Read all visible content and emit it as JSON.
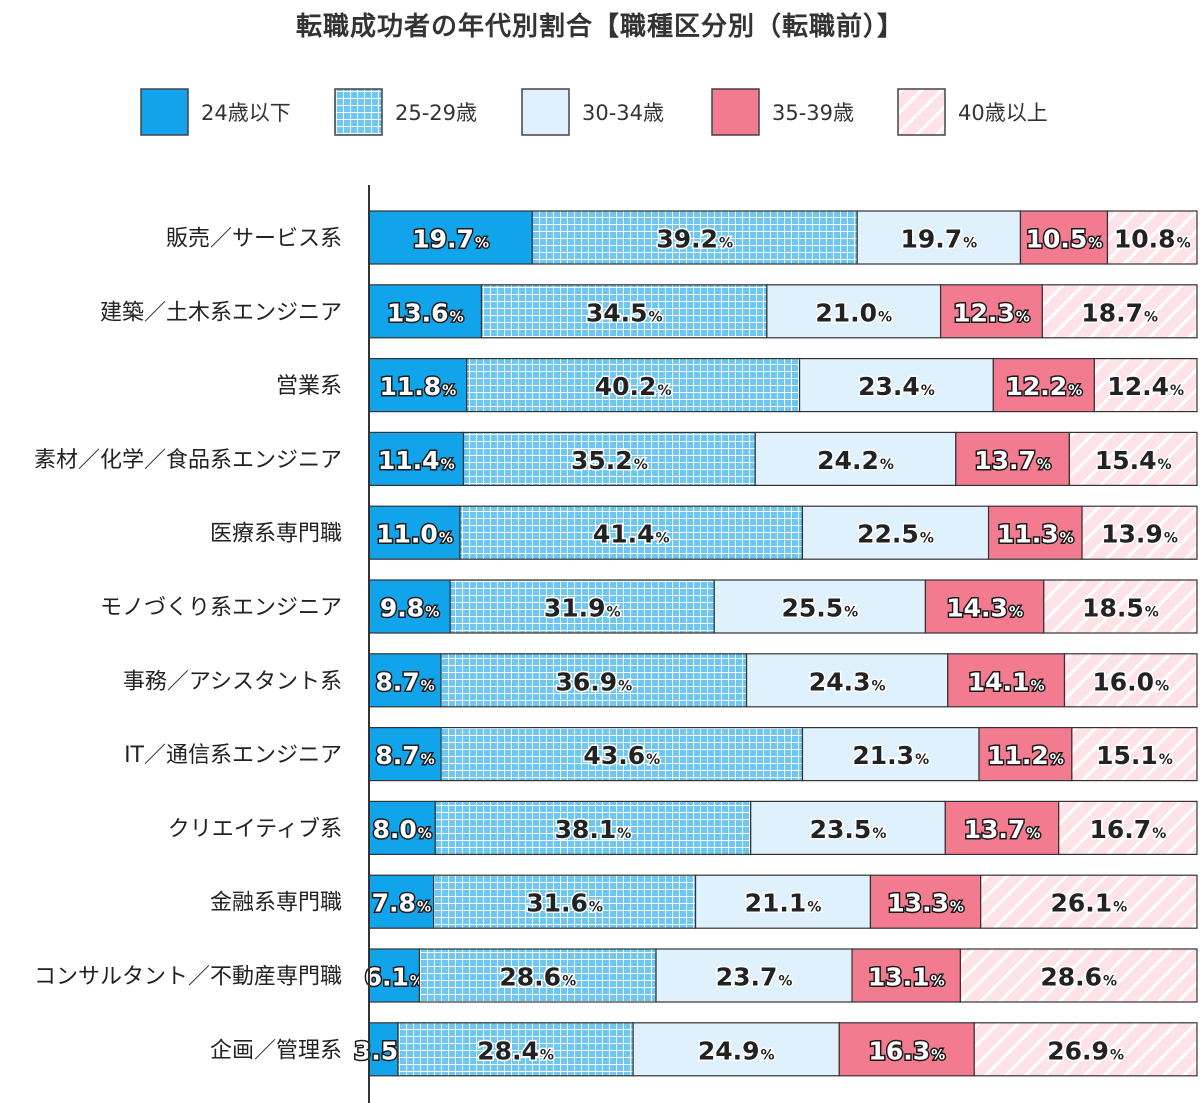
{
  "chart_data": {
    "type": "bar",
    "orientation": "horizontal",
    "stacked": "100%",
    "title": "転職成功者の年代別割合【職種区分別（転職前）】",
    "unit": "%",
    "legend_position": "top",
    "categories": [
      "販売／サービス系",
      "建築／土木系エンジニア",
      "営業系",
      "素材／化学／食品系エンジニア",
      "医療系専門職",
      "モノづくり系エンジニア",
      "事務／アシスタント系",
      "IT／通信系エンジニア",
      "クリエイティブ系",
      "金融系専門職",
      "コンサルタント／不動産専門職",
      "企画／管理系"
    ],
    "series": [
      {
        "name": "24歳以下",
        "color": "#12a4ea",
        "pattern": "solid",
        "values": [
          19.7,
          13.6,
          11.8,
          11.4,
          11.0,
          9.8,
          8.7,
          8.7,
          8.0,
          7.8,
          6.1,
          3.5
        ]
      },
      {
        "name": "25-29歳",
        "color": "#6cc8f2",
        "pattern": "grid",
        "values": [
          39.2,
          34.5,
          40.2,
          35.2,
          41.4,
          31.9,
          36.9,
          43.6,
          38.1,
          31.6,
          28.6,
          28.4
        ]
      },
      {
        "name": "30-34歳",
        "color": "#dff1fc",
        "pattern": "solid",
        "values": [
          19.7,
          21.0,
          23.4,
          24.2,
          22.5,
          25.5,
          24.3,
          21.3,
          23.5,
          21.1,
          23.7,
          24.9
        ]
      },
      {
        "name": "35-39歳",
        "color": "#f27b8f",
        "pattern": "solid",
        "values": [
          10.5,
          12.3,
          12.2,
          13.7,
          11.3,
          14.3,
          14.1,
          11.2,
          13.7,
          13.3,
          13.1,
          16.3
        ]
      },
      {
        "name": "40歳以上",
        "color": "#fde3e8",
        "pattern": "diagonal",
        "values": [
          10.8,
          18.7,
          12.4,
          15.4,
          13.9,
          18.5,
          16.0,
          15.1,
          16.7,
          26.1,
          28.6,
          26.9
        ]
      }
    ],
    "value_labels": [
      [
        "19.7",
        "39.2",
        "19.7",
        "10.5",
        "10.8"
      ],
      [
        "13.6",
        "34.5",
        "21.0",
        "12.3",
        "18.7"
      ],
      [
        "11.8",
        "40.2",
        "23.4",
        "12.2",
        "12.4"
      ],
      [
        "11.4",
        "35.2",
        "24.2",
        "13.7",
        "15.4"
      ],
      [
        "11.0",
        "41.4",
        "22.5",
        "11.3",
        "13.9"
      ],
      [
        "9.8",
        "31.9",
        "25.5",
        "14.3",
        "18.5"
      ],
      [
        "8.7",
        "36.9",
        "24.3",
        "14.1",
        "16.0"
      ],
      [
        "8.7",
        "43.6",
        "21.3",
        "11.2",
        "15.1"
      ],
      [
        "8.0",
        "38.1",
        "23.5",
        "13.7",
        "16.7"
      ],
      [
        "7.8",
        "31.6",
        "21.1",
        "13.3",
        "26.1"
      ],
      [
        "6.1",
        "28.6",
        "23.7",
        "13.1",
        "28.6"
      ],
      [
        "3.5",
        "28.4",
        "24.9",
        "16.3",
        "26.9"
      ]
    ]
  }
}
